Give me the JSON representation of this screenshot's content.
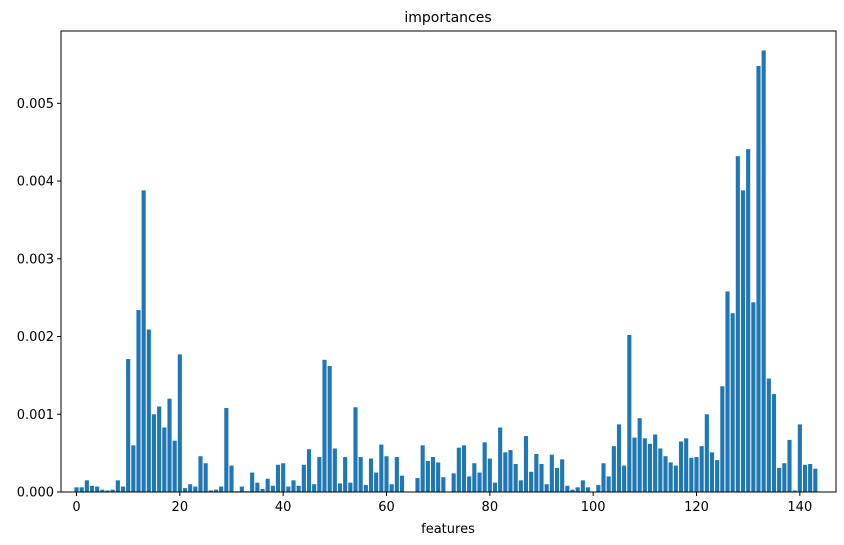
{
  "chart_data": {
    "type": "bar",
    "title": "importances",
    "xlabel": "features",
    "ylabel": "",
    "xlim": [
      -3,
      147
    ],
    "ylim": [
      0,
      0.00593
    ],
    "x_ticks": [
      0,
      20,
      40,
      60,
      80,
      100,
      120,
      140
    ],
    "y_ticks": [
      0.0,
      0.001,
      0.002,
      0.003,
      0.004,
      0.005
    ],
    "y_tick_labels": [
      "0.000",
      "0.001",
      "0.002",
      "0.003",
      "0.004",
      "0.005"
    ],
    "grid": false,
    "bar_color": "#1f77b4",
    "x": [
      0,
      1,
      2,
      3,
      4,
      5,
      6,
      7,
      8,
      9,
      10,
      11,
      12,
      13,
      14,
      15,
      16,
      17,
      18,
      19,
      20,
      21,
      22,
      23,
      24,
      25,
      26,
      27,
      28,
      29,
      30,
      31,
      32,
      33,
      34,
      35,
      36,
      37,
      38,
      39,
      40,
      41,
      42,
      43,
      44,
      45,
      46,
      47,
      48,
      49,
      50,
      51,
      52,
      53,
      54,
      55,
      56,
      57,
      58,
      59,
      60,
      61,
      62,
      63,
      64,
      65,
      66,
      67,
      68,
      69,
      70,
      71,
      72,
      73,
      74,
      75,
      76,
      77,
      78,
      79,
      80,
      81,
      82,
      83,
      84,
      85,
      86,
      87,
      88,
      89,
      90,
      91,
      92,
      93,
      94,
      95,
      96,
      97,
      98,
      99,
      100,
      101,
      102,
      103,
      104,
      105,
      106,
      107,
      108,
      109,
      110,
      111,
      112,
      113,
      114,
      115,
      116,
      117,
      118,
      119,
      120,
      121,
      122,
      123,
      124,
      125,
      126,
      127,
      128,
      129,
      130,
      131,
      132,
      133,
      134,
      135,
      136,
      137,
      138,
      139,
      140,
      141,
      142,
      143
    ],
    "values": [
      6e-05,
      6e-05,
      0.00015,
      8e-05,
      7e-05,
      3e-05,
      2e-05,
      3e-05,
      0.00015,
      7e-05,
      0.00171,
      0.0006,
      0.00234,
      0.00388,
      0.00209,
      0.001,
      0.0011,
      0.00083,
      0.0012,
      0.00066,
      0.00177,
      5e-05,
      0.0001,
      7e-05,
      0.00046,
      0.00037,
      2e-05,
      3e-05,
      7e-05,
      0.00108,
      0.00034,
      1e-05,
      7e-05,
      1e-05,
      0.00025,
      0.00012,
      4e-05,
      0.00017,
      8e-05,
      0.00035,
      0.00037,
      7e-05,
      0.00015,
      8e-05,
      0.00035,
      0.00055,
      0.0001,
      0.00045,
      0.0017,
      0.00162,
      0.00056,
      0.00011,
      0.00045,
      0.00012,
      0.00109,
      0.00045,
      9e-05,
      0.00043,
      0.00025,
      0.00061,
      0.00046,
      0.0001,
      0.00045,
      0.00021,
      0.0,
      0.0,
      0.00018,
      0.0006,
      0.0004,
      0.00045,
      0.00038,
      0.00019,
      0.0,
      0.00024,
      0.00057,
      0.0006,
      0.0002,
      0.00037,
      0.00025,
      0.00064,
      0.00043,
      0.00012,
      0.00083,
      0.00051,
      0.00054,
      0.00036,
      0.00015,
      0.00072,
      0.00026,
      0.00049,
      0.00036,
      0.0001,
      0.00048,
      0.00031,
      0.00042,
      8e-05,
      3e-05,
      6e-05,
      0.00015,
      6e-05,
      0.0,
      9e-05,
      0.00037,
      0.0002,
      0.00059,
      0.00087,
      0.00034,
      0.00202,
      0.0007,
      0.00095,
      0.00069,
      0.00062,
      0.00074,
      0.00056,
      0.00046,
      0.00038,
      0.00034,
      0.00065,
      0.00069,
      0.00044,
      0.00045,
      0.00059,
      0.001,
      0.00051,
      0.00041,
      0.00136,
      0.00258,
      0.0023,
      0.00432,
      0.00388,
      0.00441,
      0.00244,
      0.00548,
      0.00568,
      0.00146,
      0.00126,
      0.00031,
      0.00037,
      0.00067,
      2e-05,
      0.00087,
      0.00035,
      0.00036,
      0.0003
    ]
  }
}
